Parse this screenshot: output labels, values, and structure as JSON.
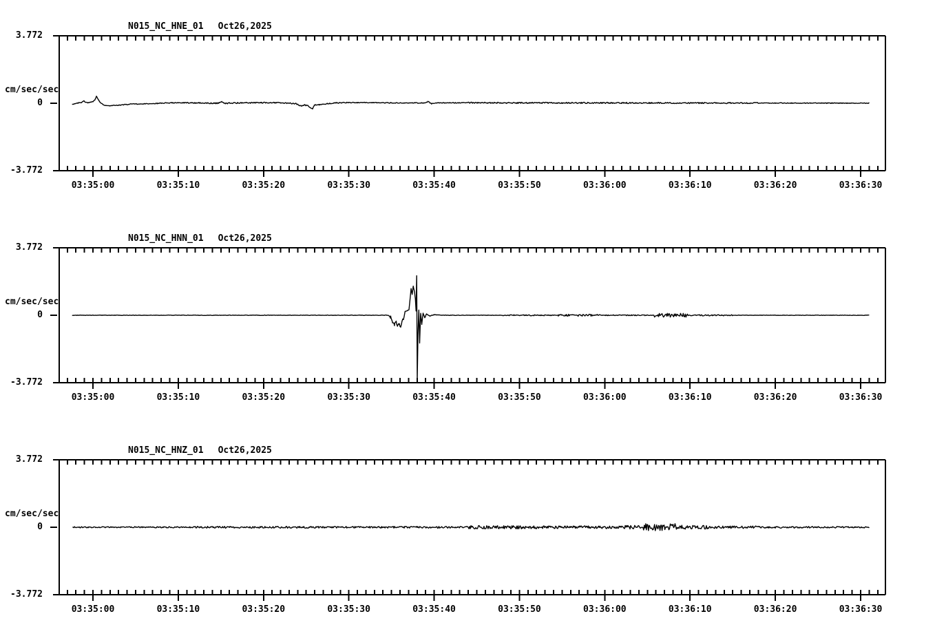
{
  "page": {
    "background": "#ffffff",
    "foreground": "#000000",
    "description": "Three-panel seismogram strip chart, black on white"
  },
  "chart_data": [
    {
      "type": "line",
      "title": "N015_NC_HNE_01",
      "date": "Oct26,2025",
      "ylabel": "cm/sec/sec",
      "ylim": [
        -3.772,
        3.772
      ],
      "ytick_labels": [
        "3.772",
        "0",
        "-3.772"
      ],
      "ytick_values": [
        3.772,
        0,
        -3.772
      ],
      "xtick_labels": [
        "03:35:00",
        "03:35:10",
        "03:35:20",
        "03:35:30",
        "03:35:40",
        "03:35:50",
        "03:36:00",
        "03:36:10",
        "03:36:20",
        "03:36:30"
      ],
      "xtick_offsets_sec": [
        0,
        10,
        20,
        30,
        40,
        50,
        60,
        70,
        80,
        90
      ],
      "minor_tick_interval_sec": 1,
      "grid": false,
      "legend": null,
      "line_color": "#000000",
      "trace": {
        "t_range": [
          -2.4,
          91.0
        ],
        "keypoints": [
          [
            -2.4,
            -0.05
          ],
          [
            -2.1,
            -0.02
          ],
          [
            -1.7,
            0.02
          ],
          [
            -1.3,
            0.05
          ],
          [
            -1.05,
            0.15
          ],
          [
            -0.9,
            0.05
          ],
          [
            -0.6,
            0.02
          ],
          [
            -0.3,
            0.05
          ],
          [
            0.0,
            0.1
          ],
          [
            0.25,
            0.2
          ],
          [
            0.4,
            0.38
          ],
          [
            0.55,
            0.27
          ],
          [
            0.75,
            0.12
          ],
          [
            1.0,
            -0.02
          ],
          [
            1.4,
            -0.12
          ],
          [
            2.0,
            -0.14
          ],
          [
            2.8,
            -0.12
          ],
          [
            3.6,
            -0.08
          ],
          [
            4.5,
            -0.05
          ],
          [
            6.0,
            -0.03
          ],
          [
            8.0,
            0.0
          ],
          [
            10.0,
            0.03
          ],
          [
            12.0,
            0.02
          ],
          [
            14.7,
            0.0
          ],
          [
            15.1,
            0.07
          ],
          [
            15.5,
            -0.02
          ],
          [
            16.0,
            0.01
          ],
          [
            19.0,
            0.03
          ],
          [
            22.0,
            0.03
          ],
          [
            23.8,
            -0.02
          ],
          [
            24.2,
            -0.12
          ],
          [
            24.5,
            -0.15
          ],
          [
            24.8,
            -0.1
          ],
          [
            25.2,
            -0.14
          ],
          [
            25.75,
            -0.32
          ],
          [
            25.95,
            -0.1
          ],
          [
            26.5,
            -0.08
          ],
          [
            27.5,
            -0.03
          ],
          [
            28.5,
            0.02
          ],
          [
            31.0,
            0.04
          ],
          [
            35.0,
            0.02
          ],
          [
            38.8,
            0.02
          ],
          [
            39.3,
            0.09
          ],
          [
            39.7,
            -0.03
          ],
          [
            40.3,
            0.02
          ],
          [
            44.0,
            0.03
          ],
          [
            48.0,
            0.02
          ],
          [
            55.0,
            0.02
          ],
          [
            62.0,
            0.02
          ],
          [
            70.0,
            0.015
          ],
          [
            80.0,
            0.01
          ],
          [
            91.0,
            0.005
          ]
        ],
        "noise_base": 0.022,
        "noise_bands": [
          [
            7,
            30,
            0.03
          ],
          [
            44,
            78,
            0.035
          ]
        ]
      }
    },
    {
      "type": "line",
      "title": "N015_NC_HNN_01",
      "date": "Oct26,2025",
      "ylabel": "cm/sec/sec",
      "ylim": [
        -3.772,
        3.772
      ],
      "ytick_labels": [
        "3.772",
        "0",
        "-3.772"
      ],
      "ytick_values": [
        3.772,
        0,
        -3.772
      ],
      "xtick_labels": [
        "03:35:00",
        "03:35:10",
        "03:35:20",
        "03:35:30",
        "03:35:40",
        "03:35:50",
        "03:36:00",
        "03:36:10",
        "03:36:20",
        "03:36:30"
      ],
      "xtick_offsets_sec": [
        0,
        10,
        20,
        30,
        40,
        50,
        60,
        70,
        80,
        90
      ],
      "minor_tick_interval_sec": 1,
      "grid": false,
      "legend": null,
      "line_color": "#000000",
      "trace": {
        "t_range": [
          -2.4,
          91.0
        ],
        "keypoints": [
          [
            -2.4,
            0
          ],
          [
            34.6,
            0
          ],
          [
            34.9,
            -0.1
          ],
          [
            35.1,
            -0.42
          ],
          [
            35.35,
            -0.52
          ],
          [
            35.55,
            -0.38
          ],
          [
            35.7,
            -0.55
          ],
          [
            35.9,
            -0.48
          ],
          [
            36.1,
            -0.65
          ],
          [
            36.25,
            -0.3
          ],
          [
            36.45,
            -0.18
          ],
          [
            36.6,
            0.22
          ],
          [
            36.85,
            0.26
          ],
          [
            37.05,
            0.32
          ],
          [
            37.15,
            0.8
          ],
          [
            37.3,
            1.5
          ],
          [
            37.42,
            1.15
          ],
          [
            37.55,
            1.62
          ],
          [
            37.7,
            1.3
          ],
          [
            37.8,
            0.9
          ],
          [
            37.88,
            0.25
          ],
          [
            37.95,
            2.2
          ],
          [
            38.02,
            -3.65
          ],
          [
            38.1,
            -1.1
          ],
          [
            38.2,
            0.3
          ],
          [
            38.3,
            -1.55
          ],
          [
            38.42,
            0.12
          ],
          [
            38.55,
            -0.5
          ],
          [
            38.7,
            0.12
          ],
          [
            38.9,
            -0.15
          ],
          [
            39.1,
            0.08
          ],
          [
            39.5,
            -0.04
          ],
          [
            40.0,
            0.03
          ],
          [
            41.0,
            0.0
          ],
          [
            91.0,
            0.0
          ]
        ],
        "noise_base": 0.013,
        "noise_bands": [
          [
            34.8,
            36.5,
            0.07
          ],
          [
            48,
            54,
            0.03
          ],
          [
            54.5,
            59.5,
            0.055
          ],
          [
            60,
            65,
            0.025
          ],
          [
            65.8,
            69.8,
            0.11
          ],
          [
            70,
            75,
            0.035
          ]
        ]
      }
    },
    {
      "type": "line",
      "title": "N015_NC_HNZ_01",
      "date": "Oct26,2025",
      "ylabel": "cm/sec/sec",
      "ylim": [
        -3.772,
        3.772
      ],
      "ytick_labels": [
        "3.772",
        "0",
        "-3.772"
      ],
      "ytick_values": [
        3.772,
        0,
        -3.772
      ],
      "xtick_labels": [
        "03:35:00",
        "03:35:10",
        "03:35:20",
        "03:35:30",
        "03:35:40",
        "03:35:50",
        "03:36:00",
        "03:36:10",
        "03:36:20",
        "03:36:30"
      ],
      "xtick_offsets_sec": [
        0,
        10,
        20,
        30,
        40,
        50,
        60,
        70,
        80,
        90
      ],
      "minor_tick_interval_sec": 1,
      "grid": false,
      "legend": null,
      "line_color": "#000000",
      "trace": {
        "t_range": [
          -2.4,
          91.0
        ],
        "keypoints": [
          [
            -2.4,
            0.0
          ],
          [
            91.0,
            0.0
          ]
        ],
        "noise_base": 0.035,
        "noise_bands": [
          [
            12,
            44,
            0.05
          ],
          [
            44,
            52,
            0.09
          ],
          [
            52,
            62,
            0.075
          ],
          [
            62,
            64.5,
            0.1
          ],
          [
            64.5,
            68.5,
            0.21
          ],
          [
            68.5,
            72,
            0.11
          ],
          [
            72,
            78,
            0.07
          ],
          [
            78,
            85,
            0.05
          ],
          [
            85,
            91,
            0.04
          ]
        ]
      }
    }
  ]
}
